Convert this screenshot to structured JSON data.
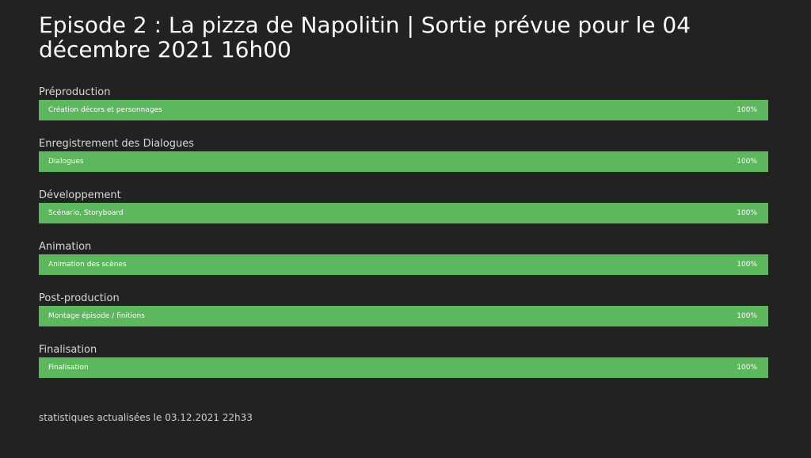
{
  "page": {
    "title": "Episode 2 : La pizza de Napolitin | Sortie prévue pour le 04 décembre 2021 16h00",
    "footer": "statistiques actualisées le 03.12.2021 22h33"
  },
  "colors": {
    "background": "#222222",
    "bar_fill": "#5cb85c",
    "text": "#ffffff"
  },
  "sections": [
    {
      "label": "Préproduction",
      "task": "Création décors et personnages",
      "percent": "100%",
      "progress": 1.0
    },
    {
      "label": "Enregistrement des Dialogues",
      "task": "Dialogues",
      "percent": "100%",
      "progress": 1.0
    },
    {
      "label": "Développement",
      "task": "Scénario, Storyboard",
      "percent": "100%",
      "progress": 1.0
    },
    {
      "label": "Animation",
      "task": "Animation des scènes",
      "percent": "100%",
      "progress": 1.0
    },
    {
      "label": "Post-production",
      "task": "Montage épisode / finitions",
      "percent": "100%",
      "progress": 1.0
    },
    {
      "label": "Finalisation",
      "task": "Finalisation",
      "percent": "100%",
      "progress": 1.0
    }
  ]
}
